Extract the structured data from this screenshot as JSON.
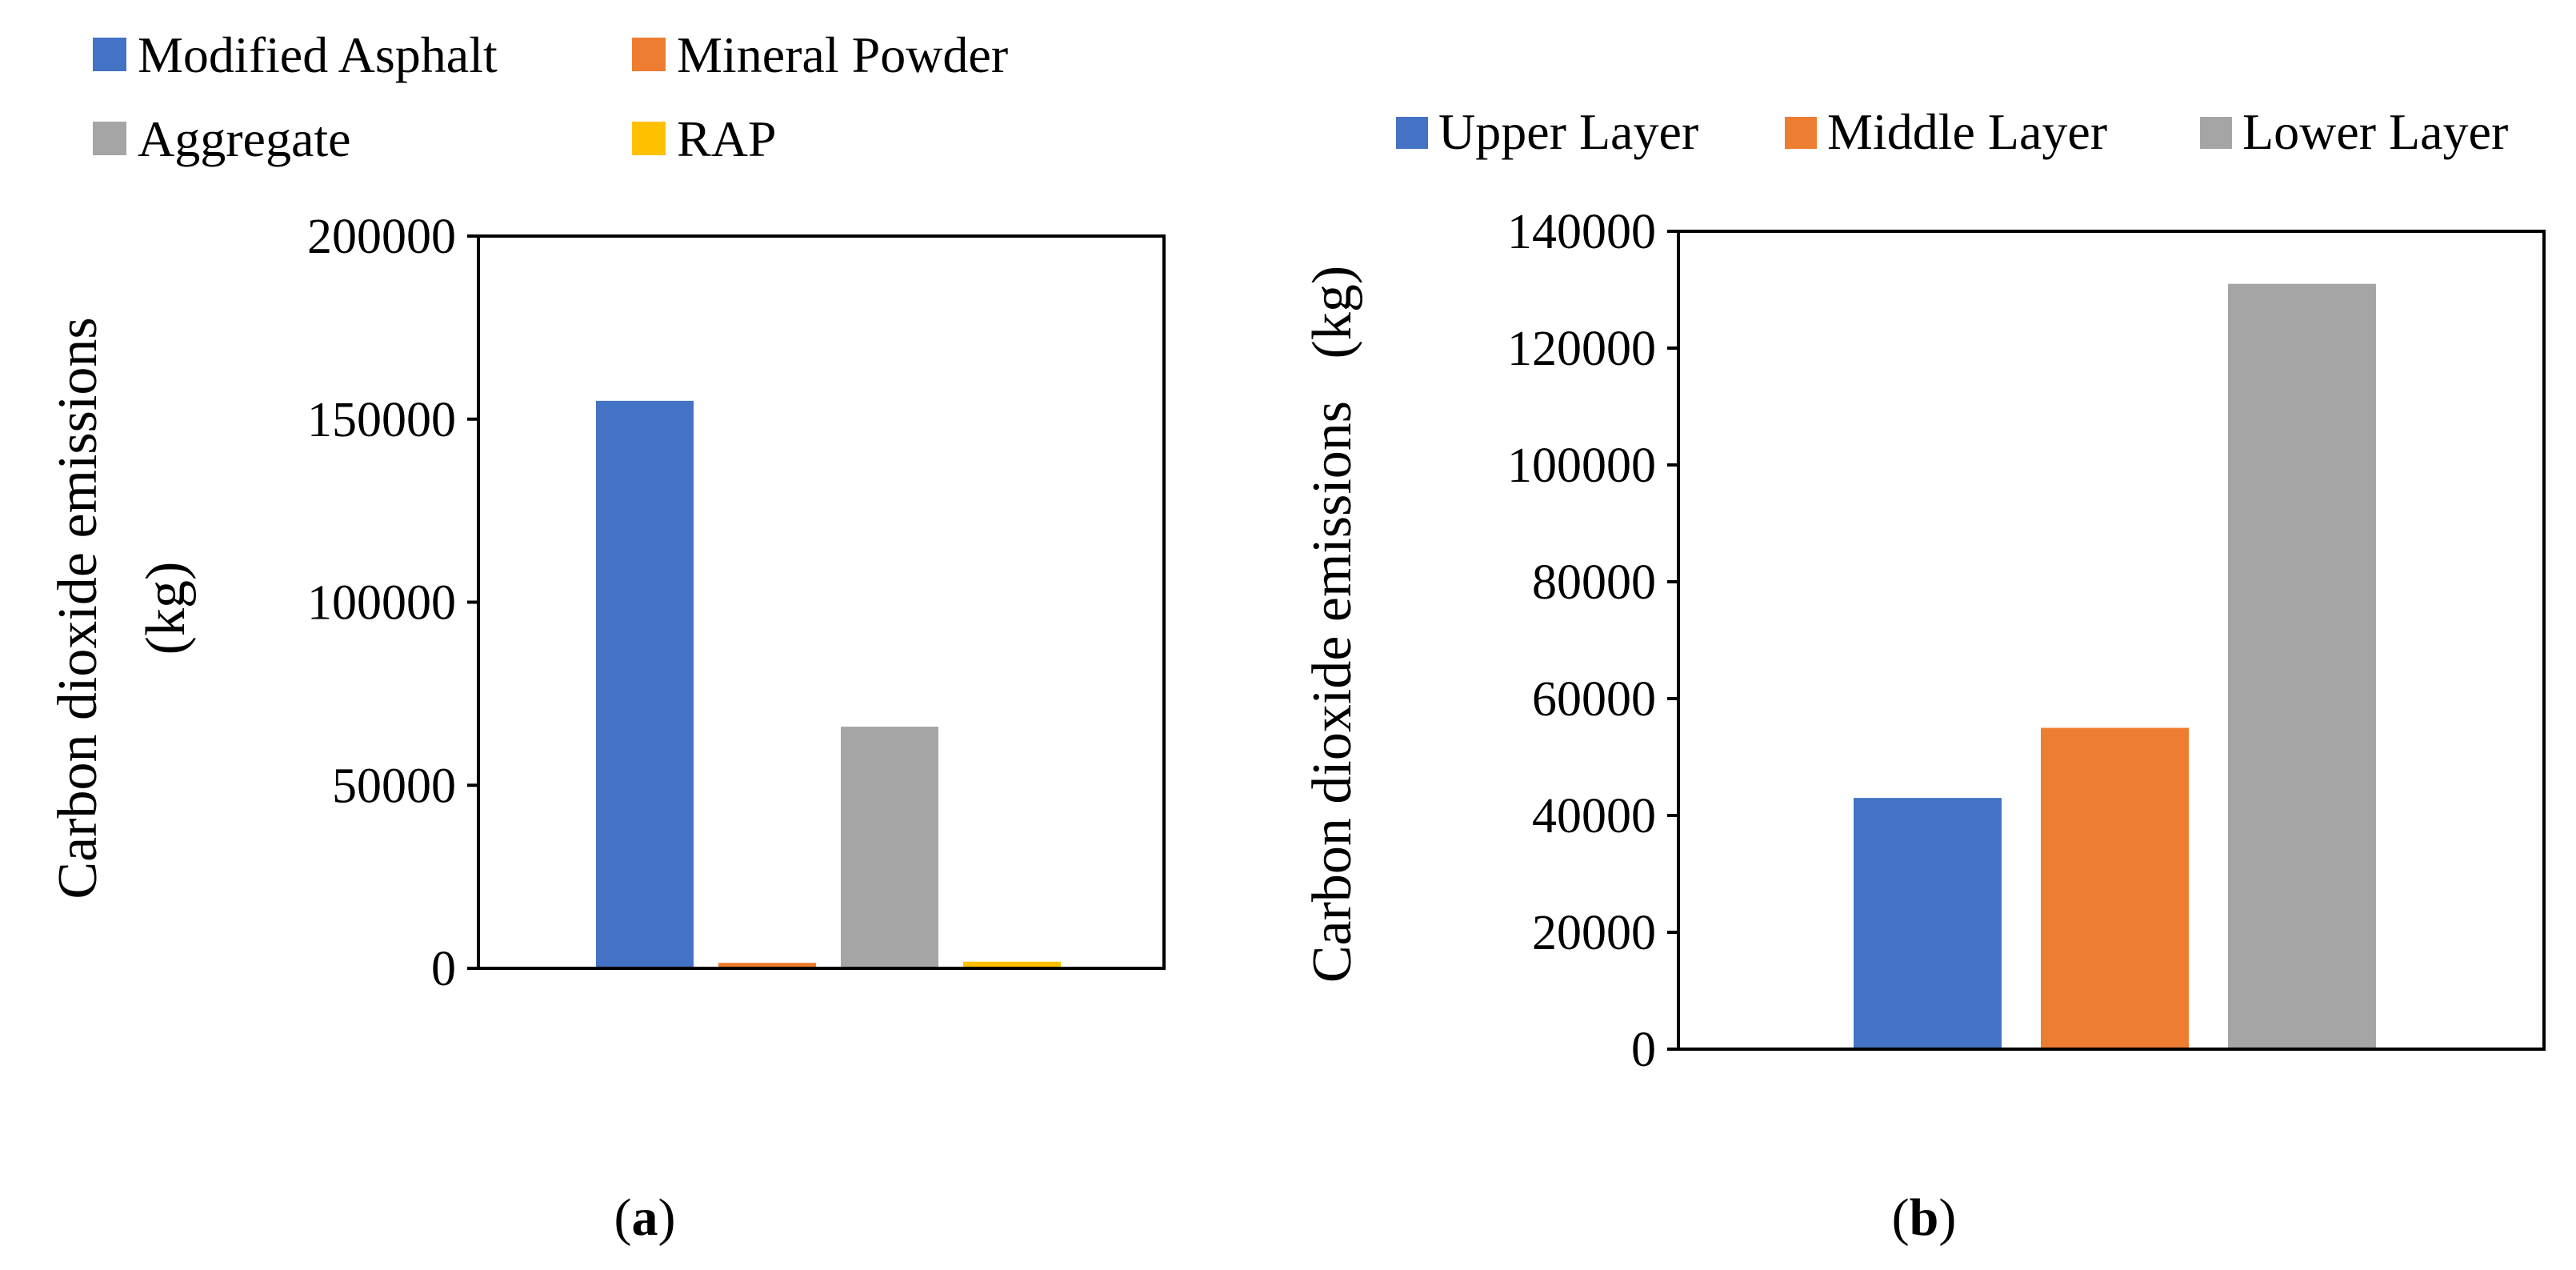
{
  "colors": {
    "blue": "#4472C4",
    "orange": "#ED7D31",
    "gray": "#A5A5A5",
    "yellow": "#FFC000",
    "axis": "#000000"
  },
  "chart_data": [
    {
      "id": "a",
      "type": "bar",
      "panel_label": "a",
      "title": "",
      "xlabel": "",
      "ylabel_lines": [
        "Carbon dioxide emissions",
        "(kg)"
      ],
      "ylim": [
        0,
        200000
      ],
      "yticks": [
        0,
        50000,
        100000,
        150000,
        200000
      ],
      "ytick_labels": [
        "0",
        "50000",
        "100000",
        "150000",
        "200000"
      ],
      "grid": false,
      "legend_position": "top-left",
      "series": [
        {
          "name": "Modified Asphalt",
          "value": 155000,
          "color": "#4472C4"
        },
        {
          "name": "Mineral Powder",
          "value": 1500,
          "color": "#ED7D31"
        },
        {
          "name": "Aggregate",
          "value": 66000,
          "color": "#A5A5A5"
        },
        {
          "name": "RAP",
          "value": 1800,
          "color": "#FFC000"
        }
      ]
    },
    {
      "id": "b",
      "type": "bar",
      "panel_label": "b",
      "title": "",
      "xlabel": "",
      "ylabel_lines": [
        "Carbon dioxide emissions   (kg)"
      ],
      "ylim": [
        0,
        140000
      ],
      "yticks": [
        0,
        20000,
        40000,
        60000,
        80000,
        100000,
        120000,
        140000
      ],
      "ytick_labels": [
        "0",
        "20000",
        "40000",
        "60000",
        "80000",
        "100000",
        "120000",
        "140000"
      ],
      "grid": false,
      "legend_position": "top",
      "series": [
        {
          "name": "Upper Layer",
          "value": 43000,
          "color": "#4472C4"
        },
        {
          "name": "Middle Layer",
          "value": 55000,
          "color": "#ED7D31"
        },
        {
          "name": "Lower Layer",
          "value": 131000,
          "color": "#A5A5A5"
        }
      ]
    }
  ]
}
